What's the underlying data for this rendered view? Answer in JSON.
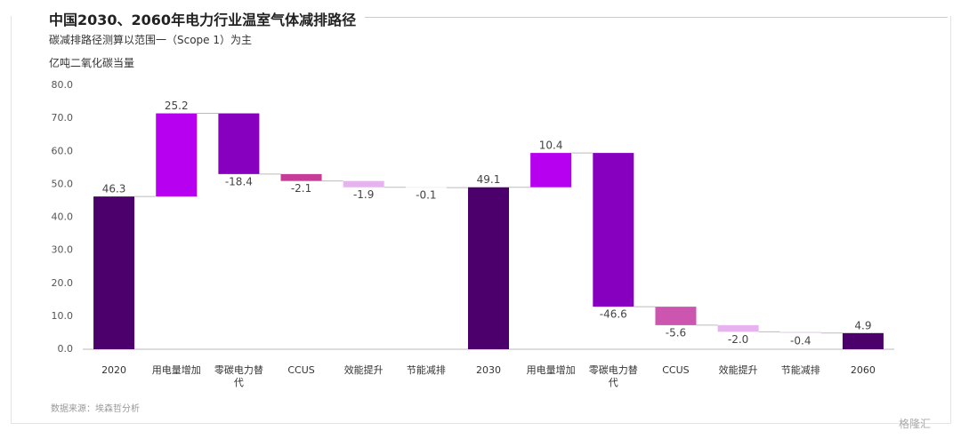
{
  "chart_data": {
    "type": "waterfall",
    "title": "中国2030、2060年电力行业温室气体减排路径",
    "subtitle": "碳减排路径测算以范围一（Scope 1）为主",
    "y_label": "亿吨二氧化碳当量",
    "source": "数据来源：埃森哲分析",
    "watermark": "格隆汇",
    "categories": [
      "2020",
      "用电量增加",
      "零碳电力替代",
      "CCUS",
      "效能提升",
      "节能减排",
      "2030",
      "用电量增加",
      "零碳电力替代",
      "CCUS",
      "效能提升",
      "节能减排",
      "2060"
    ],
    "values": [
      46.3,
      25.2,
      -18.4,
      -2.1,
      -1.9,
      -0.1,
      49.1,
      10.4,
      -46.6,
      -5.6,
      -2.0,
      -0.4,
      4.9
    ],
    "value_labels": [
      "46.3",
      "25.2",
      "-18.4",
      "-2.1",
      "-1.9",
      "-0.1",
      "49.1",
      "10.4",
      "-46.6",
      "-5.6",
      "-2.0",
      "-0.4",
      "4.9"
    ],
    "is_total": [
      true,
      false,
      false,
      false,
      false,
      false,
      true,
      false,
      false,
      false,
      false,
      false,
      true
    ],
    "colors": [
      "#4b006b",
      "#b800f0",
      "#8700c0",
      "#c53d96",
      "#e6b3ef",
      "#e9dcef",
      "#4b006b",
      "#b800f0",
      "#8700c0",
      "#cc55b0",
      "#e6b3ef",
      "#e9dcef",
      "#4b006b"
    ],
    "ylim": [
      0,
      80
    ],
    "yticks": [
      {
        "value": 0,
        "label": "0.0"
      },
      {
        "value": 10,
        "label": "10.0"
      },
      {
        "value": 20,
        "label": "20.0"
      },
      {
        "value": 30,
        "label": "30.0"
      },
      {
        "value": 40,
        "label": "40.0"
      },
      {
        "value": 50,
        "label": "50.0"
      },
      {
        "value": 60,
        "label": "60.0"
      },
      {
        "value": 70,
        "label": "70.0"
      },
      {
        "value": 80,
        "label": "80.0"
      }
    ]
  }
}
